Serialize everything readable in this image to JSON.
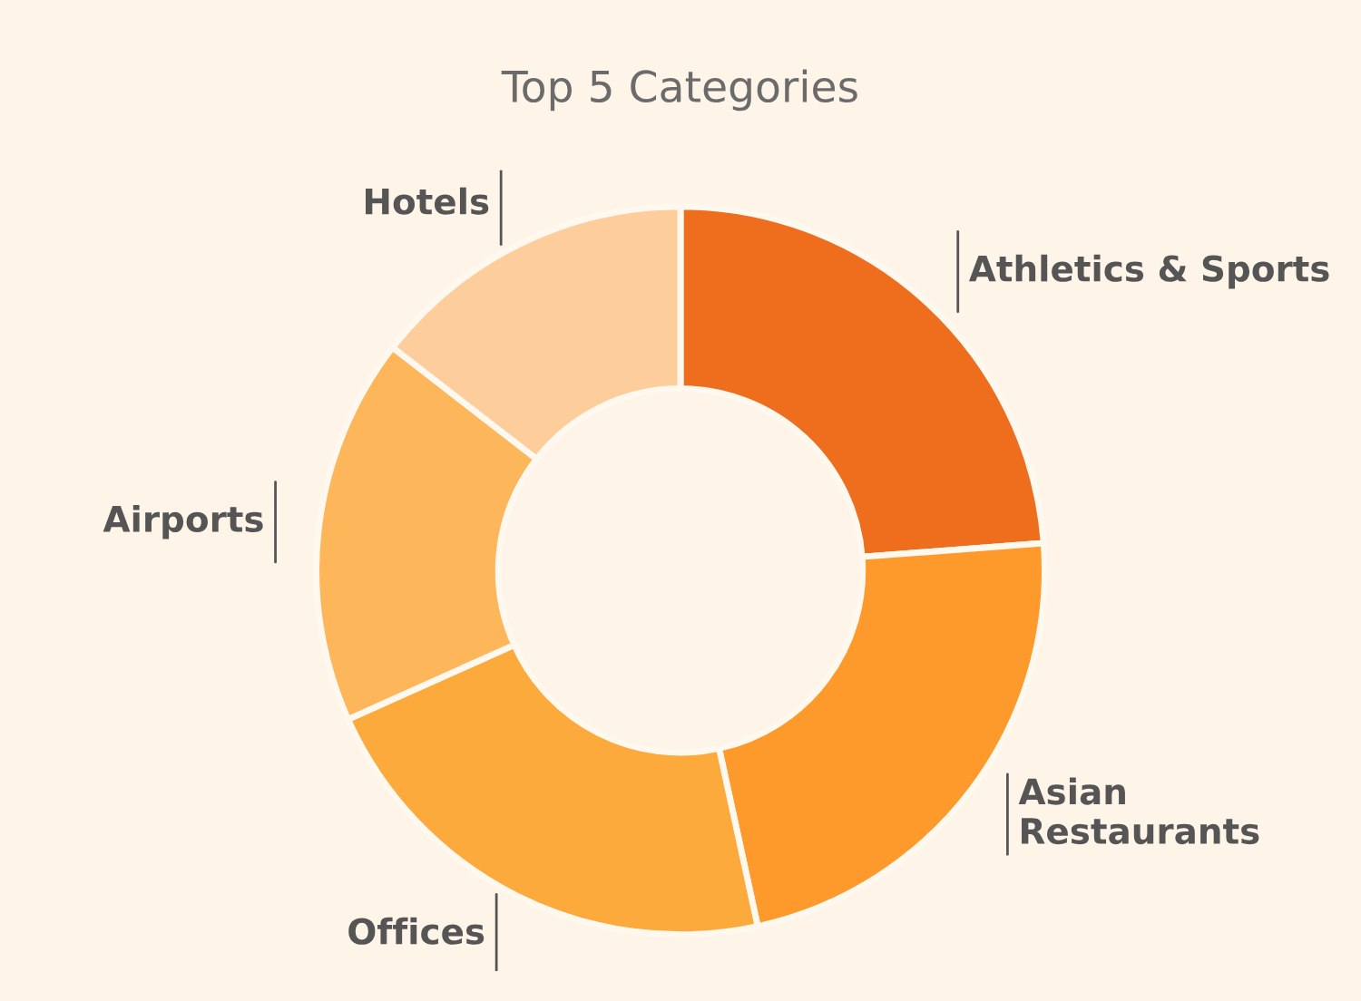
{
  "chart_data": {
    "type": "donut",
    "title": "Top 5 Categories",
    "categories": [
      "Athletics & Sports",
      "Asian\nRestaurants",
      "Offices",
      "Airports",
      "Hotels"
    ],
    "values": [
      23.8,
      22.8,
      21.7,
      17.2,
      14.5
    ],
    "colors": [
      "#ee6e1e",
      "#fd9a2b",
      "#fdaa3c",
      "#fdb65a",
      "#fecd9c"
    ]
  }
}
